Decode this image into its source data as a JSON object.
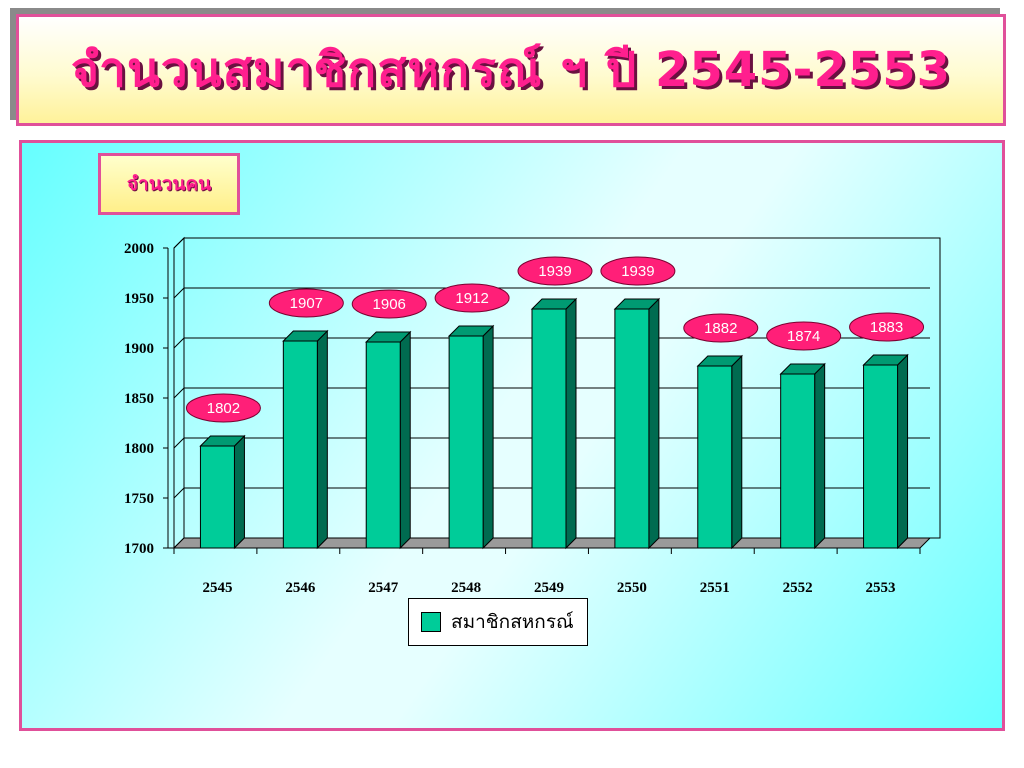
{
  "slide": {
    "title": "จำนวนสมาชิกสหกรณ์ ฯ ปี 2545-2553",
    "unit_label": "จำนวนคน"
  },
  "colors": {
    "bar_front": "#00cc99",
    "bar_side": "#006b50",
    "bar_top": "#009a72",
    "label_fill": "#ff1f78",
    "accent": "#e0509a"
  },
  "chart_data": {
    "type": "bar",
    "categories": [
      "2545",
      "2546",
      "2547",
      "2548",
      "2549",
      "2550",
      "2551",
      "2552",
      "2553"
    ],
    "series": [
      {
        "name": "สมาชิกสหกรณ์",
        "values": [
          1802,
          1907,
          1906,
          1912,
          1939,
          1939,
          1882,
          1874,
          1883
        ]
      }
    ],
    "data_labels": [
      "1802",
      "1907",
      "1906",
      "1912",
      "1939",
      "1939",
      "1882",
      "1874",
      "1883"
    ],
    "ylim": [
      1700,
      2000
    ],
    "yticks": [
      1700,
      1750,
      1800,
      1850,
      1900,
      1950,
      2000
    ],
    "grid": true,
    "legend_position": "bottom-center",
    "style": "3d-column"
  }
}
